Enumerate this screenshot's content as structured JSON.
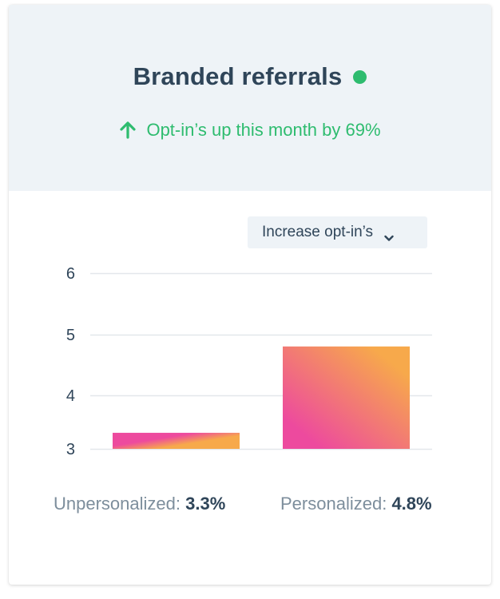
{
  "card": {
    "title": "Branded referrals",
    "status_color": "#2ebc6f",
    "trend_text": "Opt-in’s up this month by 69%",
    "trend_icon": "arrow-up-icon",
    "dropdown_label": "Increase opt-in’s",
    "dropdown_icon": "chevron-down-icon"
  },
  "chart_data": {
    "type": "bar",
    "categories": [
      "Unpersonalized",
      "Personalized"
    ],
    "values": [
      3.3,
      4.8
    ],
    "ylim": [
      3,
      6
    ],
    "yticks": [
      3,
      4,
      5,
      6
    ],
    "grid": true,
    "title": "",
    "xlabel": "",
    "ylabel": "",
    "gradient": [
      "#ed4a9e",
      "#f7a94b"
    ]
  },
  "legend": [
    {
      "label": "Unpersonalized:",
      "value": "3.3%"
    },
    {
      "label": "Personalized:",
      "value": "4.8%"
    }
  ]
}
